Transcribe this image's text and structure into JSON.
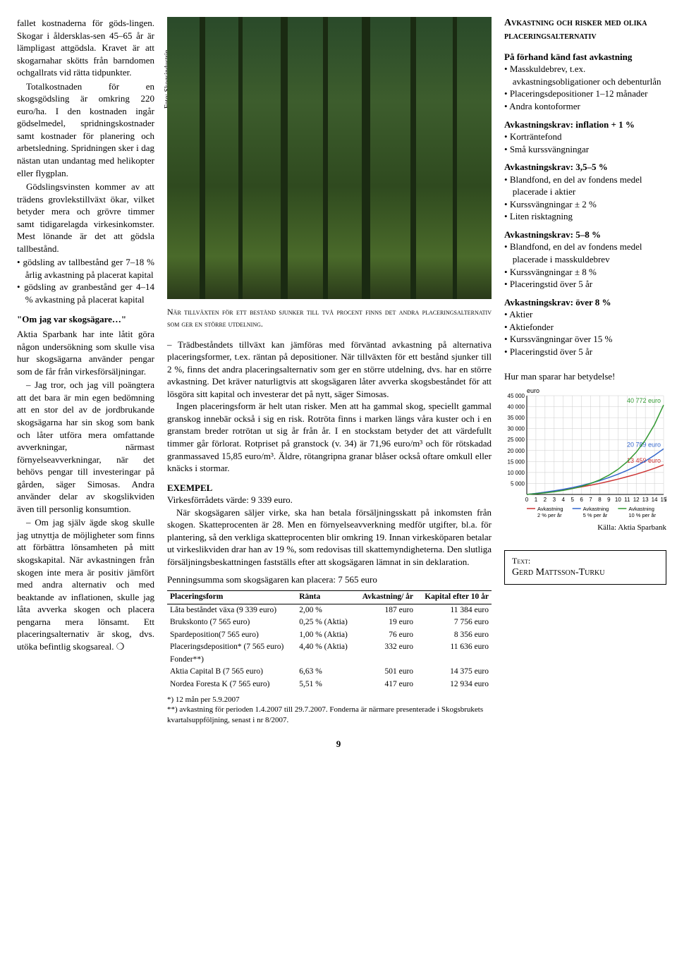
{
  "left_col": {
    "para1_lines": [
      "fallet kostnaderna för göds-",
      "lingen. Skogar i åldersklas-",
      "sen 45–65 år är lämpligast att",
      "gödsla. Kravet är att skogarna",
      "har skötts från barndomen och",
      "gallrats vid rätta tidpunkter."
    ],
    "para2": "Totalkostnaden för en skogsgödsling är omkring 220 euro/ha. I den kostnaden ingår gödselmedel, spridningskostnader samt kostnader för planering och arbetsledning. Spridningen sker i dag nästan utan undantag med helikopter eller flygplan.",
    "para3": "Gödslingsvinsten kommer av att trädens grovlekstillväxt ökar, vilket betyder mera och grövre timmer samt tidigarelagda virkesinkomster. Mest lönande är det att gödsla tallbestånd.",
    "bullets1": [
      "gödsling av tallbestånd ger 7–18 % årlig avkastning på placerat kapital",
      "gödsling av granbestånd ger 4–14 % avkastning på placerat kapital"
    ],
    "sub1": "\"Om jag var skogsägare…\"",
    "para4": "Aktia Sparbank har inte låtit göra någon undersökning som skulle visa hur skogsägarna använder pengar som de får från virkesförsäljningar.",
    "para5": "– Jag tror, och jag vill poängtera att det bara är min egen bedömning att en stor del av de jordbrukande skogsägarna har sin skog som bank och låter utföra mera omfattande avverkningar, närmast förnyelseavverkningar, när det behövs pengar till investeringar på gården, säger Simosas. Andra använder delar av skogslikviden även till personlig konsumtion.",
    "para6": "– Om jag själv ägde skog skulle jag utnyttja de möjligheter som finns att förbättra lönsamheten på mitt skogskapital. När avkastningen från skogen inte mera är positiv jämfört med andra alternativ och med beaktande av inflationen, skulle jag låta avverka skogen och placera pengarna mera lönsamt. Ett placeringsalternativ är skog, dvs. utöka befintlig skogsareal. ❍",
    "photo_credit": "Foto: Skogsindustrin."
  },
  "mid_col": {
    "caption": "När tillväxten för ett bestånd sjunker till två procent finns det andra placeringsalternativ som ger en större utdelning.",
    "p1": "– Trädbeståndets tillväxt kan jämföras med förväntad avkastning på alternativa placeringsformer, t.ex. räntan på depositioner. När tillväxten för ett bestånd sjunker till 2 %, finns det andra placeringsalternativ som ger en större utdelning, dvs. har en större avkastning. Det kräver naturligtvis att skogsägaren låter avverka skogsbeståndet för att lösgöra sitt kapital och investerar det på nytt, säger Simosas.",
    "p2": "Ingen placeringsform är helt utan risker. Men att ha gammal skog, speciellt gammal granskog innebär också i sig en risk. Rotröta finns i marken längs våra kuster och i en granstam breder rotrötan ut sig år från år. I en stockstam betyder det att värdefullt timmer går förlorat. Rotpriset på granstock (v. 34) är 71,96 euro/m³ och för rötskadad granmassaved 15,85 euro/m³. Äldre, rötangripna granar blåser också oftare omkull eller knäcks i stormar.",
    "example_hdr": "EXEMPEL",
    "p3": "Virkesförrådets värde: 9 339 euro.",
    "p4": "När skogsägaren säljer virke, ska han betala försäljningsskatt på inkomsten från skogen. Skatteprocenten är 28. Men en förnyelseavverkning medför utgifter, bl.a. för plantering, så den verkliga skatteprocenten blir omkring 19. Innan virkesköparen betalar ut virkeslikviden drar han av 19 %, som redovisas till skattemyndigheterna. Den slutliga försäljningsbeskattningen fastställs efter att skogsägaren lämnat in sin deklaration.",
    "p5": "Penningsumma som skogsägaren kan placera: 7 565 euro",
    "table": {
      "headers": [
        "Placeringsform",
        "Ränta",
        "Avkastning/ år",
        "Kapital efter 10 år"
      ],
      "rows": [
        [
          "Låta beståndet växa (9 339 euro)",
          "2,00 %",
          "187 euro",
          "11 384 euro"
        ],
        [
          "Brukskonto (7 565 euro)",
          "0,25 % (Aktia)",
          "19 euro",
          "7 756 euro"
        ],
        [
          "Spardeposition(7 565 euro)",
          "1,00 % (Aktia)",
          "76 euro",
          "8 356 euro"
        ],
        [
          "Placeringsdeposition* (7 565 euro)",
          "4,40 % (Aktia)",
          "332 euro",
          "11 636 euro"
        ],
        [
          "Fonder**)",
          "",
          "",
          ""
        ],
        [
          "Aktia Capital B (7 565 euro)",
          "6,63 %",
          "501 euro",
          "14 375 euro"
        ],
        [
          "Nordea Foresta K (7 565 euro)",
          "5,51 %",
          "417 euro",
          "12 934 euro"
        ]
      ]
    },
    "footnote1": "*) 12 mån per 5.9.2007",
    "footnote2": "**) avkastning för perioden 1.4.2007 till 29.7.2007. Fonderna är närmare presenterade i Skogsbrukets kvartalsuppföljning, senast i nr 8/2007."
  },
  "right_col": {
    "heading1": "Avkastning och risker med olika placeringsalternativ",
    "sub1": "På förhand känd fast avkastning",
    "list1": [
      "Masskuldebrev, t.ex. avkastningsobligationer och debenturlån",
      "Placeringsdepositioner 1–12 månader",
      "Andra kontoformer"
    ],
    "sub2": "Avkastningskrav: inflation + 1 %",
    "list2": [
      "Korträntefond",
      "Små kurssvängningar"
    ],
    "sub3": "Avkastningskrav: 3,5–5 %",
    "list3": [
      "Blandfond, en del av fondens medel placerade i aktier",
      "Kurssvängningar ± 2 %",
      "Liten risktagning"
    ],
    "sub4": "Avkastningskrav: 5–8 %",
    "list4": [
      "Blandfond, en del av fondens medel placerade i masskuldebrev",
      "Kurssvängningar ± 8 %",
      "Placeringstid över 5 år"
    ],
    "sub5": "Avkastningskrav: över 8 %",
    "list5": [
      "Aktier",
      "Aktiefonder",
      "Kurssvängningar över 15 %",
      "Placeringstid över 5 år"
    ],
    "chart": {
      "heading": "Hur man sparar har betydelse!",
      "unit": "euro",
      "ylim": [
        0,
        45000
      ],
      "ytick_step": 5000,
      "xlim": [
        0,
        15
      ],
      "xtick_step": 1,
      "xlabel_right": "år",
      "series": [
        {
          "label": "Avkastning 2 % per år",
          "color": "#cc3333",
          "end_value": 13459,
          "end_label": "13 459 euro"
        },
        {
          "label": "Avkastning 5 % per år",
          "color": "#3366cc",
          "end_value": 20789,
          "end_label": "20 789 euro"
        },
        {
          "label": "Avkastning 10 % per år",
          "color": "#339933",
          "end_value": 40772,
          "end_label": "40 772 euro"
        }
      ],
      "background": "#ffffff",
      "grid_color": "#cccccc",
      "source": "Källa: Aktia Sparbank"
    },
    "author_label": "Text:",
    "author": "Gerd Mattsson-Turku"
  },
  "page_number": "9"
}
